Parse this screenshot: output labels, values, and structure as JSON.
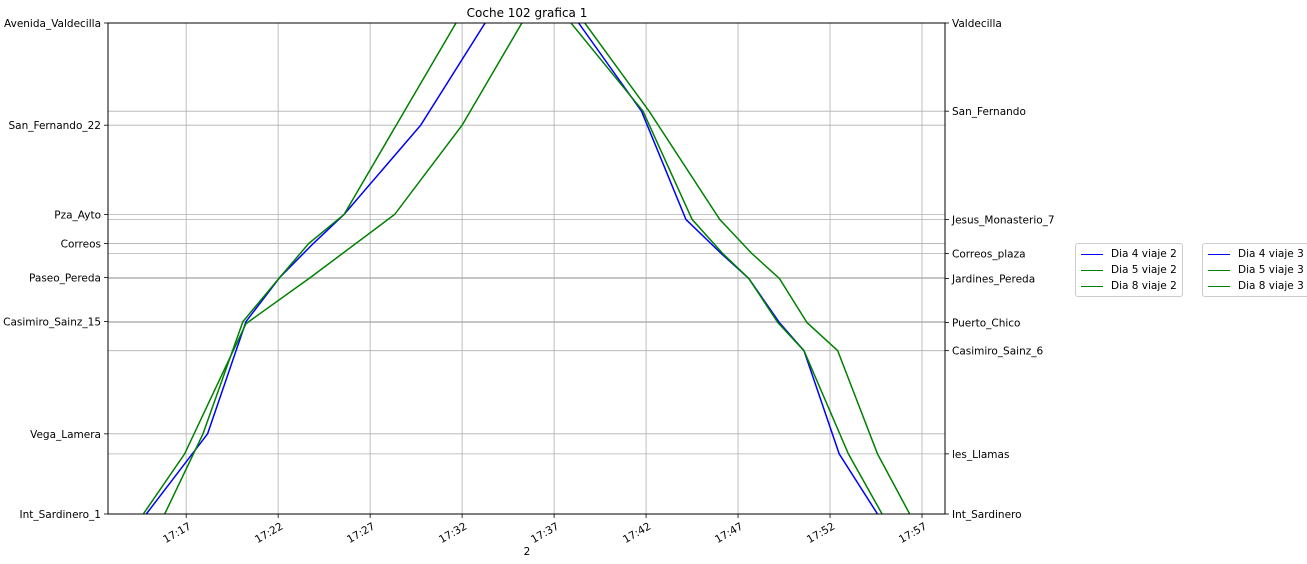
{
  "chart_data": {
    "type": "line",
    "title": "Coche 102 grafica 1",
    "xlabel": "2",
    "x_ticks": [
      "17:17",
      "17:22",
      "17:27",
      "17:32",
      "17:37",
      "17:42",
      "17:47",
      "17:52",
      "17:57"
    ],
    "x_range": [
      "17:12:45",
      "17:58:15"
    ],
    "left_stops": [
      {
        "name": "Int_Sardinero_1",
        "value": 0
      },
      {
        "name": "Vega_Lamera",
        "value": 80
      },
      {
        "name": "Casimiro_Sainz_15",
        "value": 192
      },
      {
        "name": "Paseo_Pereda",
        "value": 236
      },
      {
        "name": "Correos",
        "value": 270
      },
      {
        "name": "Pza_Ayto",
        "value": 299
      },
      {
        "name": "San_Fernando_22",
        "value": 388
      },
      {
        "name": "Avenida_Valdecilla",
        "value": 490
      }
    ],
    "right_stops": [
      {
        "name": "Int_Sardinero",
        "value": 0
      },
      {
        "name": "les_Llamas",
        "value": 60
      },
      {
        "name": "Casimiro_Sainz_6",
        "value": 163
      },
      {
        "name": "Puerto_Chico",
        "value": 191
      },
      {
        "name": "Jardines_Pereda",
        "value": 235
      },
      {
        "name": "Correos_plaza",
        "value": 260
      },
      {
        "name": "Jesus_Monasterio_7",
        "value": 294
      },
      {
        "name": "San_Fernando",
        "value": 402
      },
      {
        "name": "Valdecilla",
        "value": 490
      }
    ],
    "y_range": [
      0,
      490
    ],
    "grid": true,
    "legend_position": "right",
    "series": [
      {
        "name": "Dia 4 viaje 2",
        "color": "#0000ff",
        "points": [
          [
            "17:14:50",
            0
          ],
          [
            "17:18:10",
            80
          ],
          [
            "17:20:15",
            192
          ],
          [
            "17:22:05",
            236
          ],
          [
            "17:23:55",
            270
          ],
          [
            "17:25:35",
            299
          ],
          [
            "17:29:45",
            388
          ],
          [
            "17:33:15",
            490
          ]
        ]
      },
      {
        "name": "Dia 5 viaje 2",
        "color": "#008000",
        "points": [
          [
            "17:15:50",
            0
          ],
          [
            "17:17:55",
            80
          ],
          [
            "17:20:05",
            192
          ],
          [
            "17:22:05",
            236
          ],
          [
            "17:23:40",
            270
          ],
          [
            "17:25:35",
            299
          ],
          [
            "17:28:25",
            388
          ],
          [
            "17:31:40",
            490
          ]
        ]
      },
      {
        "name": "Dia 8 viaje 2",
        "color": "#008000",
        "points": [
          [
            "17:14:40",
            0
          ],
          [
            "17:16:55",
            60
          ],
          [
            "17:20:15",
            190
          ],
          [
            "17:23:45",
            236
          ],
          [
            "17:28:20",
            299
          ],
          [
            "17:32:00",
            388
          ],
          [
            "17:35:15",
            490
          ]
        ]
      },
      {
        "name": "Dia 4 viaje 3",
        "color": "#0000ff",
        "points": [
          [
            "17:38:20",
            490
          ],
          [
            "17:41:45",
            402
          ],
          [
            "17:44:10",
            294
          ],
          [
            "17:46:05",
            260
          ],
          [
            "17:47:35",
            235
          ],
          [
            "17:49:15",
            191
          ],
          [
            "17:50:35",
            163
          ],
          [
            "17:52:30",
            60
          ],
          [
            "17:54:35",
            0
          ]
        ]
      },
      {
        "name": "Dia 5 viaje 3",
        "color": "#008000",
        "points": [
          [
            "17:37:55",
            490
          ],
          [
            "17:41:50",
            402
          ],
          [
            "17:44:30",
            294
          ],
          [
            "17:46:10",
            260
          ],
          [
            "17:47:35",
            235
          ],
          [
            "17:49:10",
            191
          ],
          [
            "17:50:35",
            163
          ],
          [
            "17:53:00",
            60
          ],
          [
            "17:54:50",
            0
          ]
        ]
      },
      {
        "name": "Dia 8 viaje 3",
        "color": "#008000",
        "points": [
          [
            "17:38:40",
            490
          ],
          [
            "17:42:10",
            402
          ],
          [
            "17:46:00",
            294
          ],
          [
            "17:47:45",
            260
          ],
          [
            "17:49:15",
            235
          ],
          [
            "17:50:45",
            191
          ],
          [
            "17:52:25",
            163
          ],
          [
            "17:54:35",
            60
          ],
          [
            "17:56:20",
            0
          ]
        ]
      }
    ]
  }
}
